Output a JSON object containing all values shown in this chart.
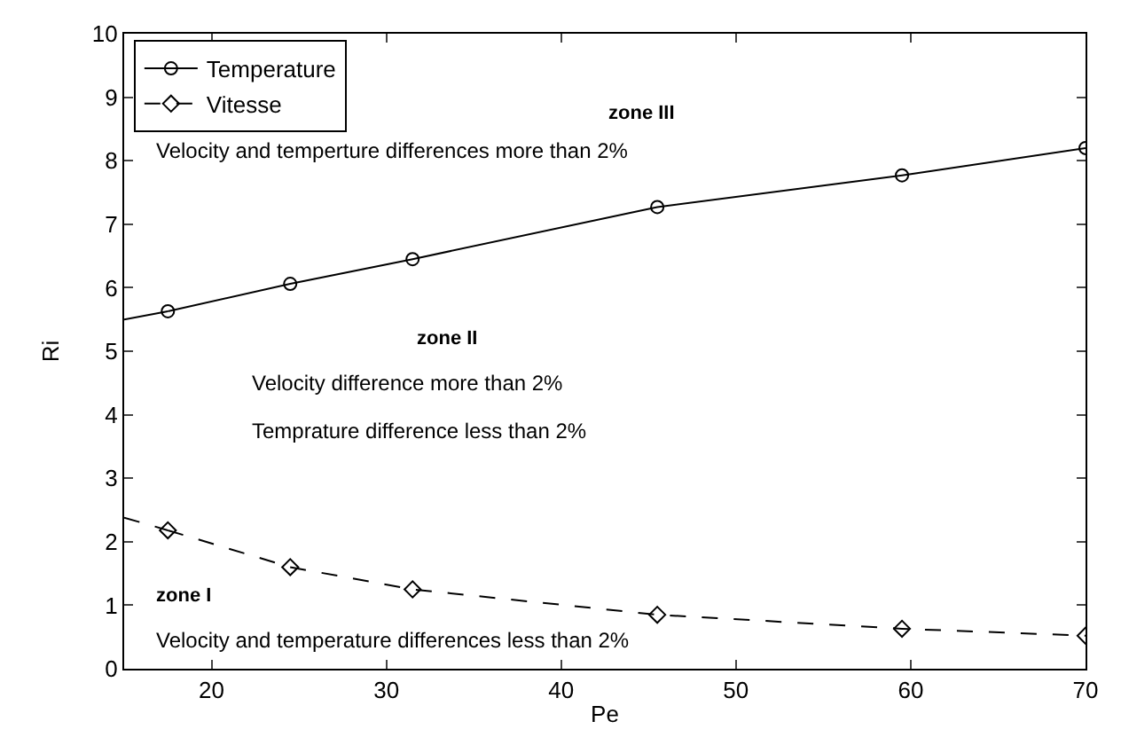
{
  "chart_data": {
    "type": "line",
    "xlabel": "Pe",
    "ylabel": "Ri",
    "xlim": [
      15,
      70
    ],
    "ylim": [
      0,
      10
    ],
    "xticks": [
      20,
      30,
      40,
      50,
      60,
      70
    ],
    "yticks": [
      0,
      1,
      2,
      3,
      4,
      5,
      6,
      7,
      8,
      9,
      10
    ],
    "legend": "top left",
    "series": [
      {
        "name": "Temperature",
        "color": "#000000",
        "marker": "circle",
        "line_style": "solid",
        "x": [
          17.5,
          24.5,
          31.5,
          45.5,
          59.5,
          70
        ],
        "values": [
          5.63,
          6.06,
          6.45,
          7.27,
          7.77,
          8.2
        ]
      },
      {
        "name": "Vitesse",
        "color": "#000000",
        "marker": "diamond",
        "line_style": "dashed",
        "x": [
          17.5,
          24.5,
          31.5,
          45.5,
          59.5,
          70
        ],
        "values": [
          2.18,
          1.6,
          1.25,
          0.85,
          0.63,
          0.52
        ]
      },
      {
        "color": "#000000",
        "marker": "none",
        "line_style": "solid",
        "x": [
          15,
          17.5
        ],
        "values": [
          5.5,
          5.63
        ]
      },
      {
        "color": "#000000",
        "marker": "none",
        "line_style": "dashed",
        "x": [
          15,
          17.5
        ],
        "values": [
          2.38,
          2.18
        ]
      }
    ],
    "annotations": [
      "zone III",
      "Velocity and temperture differences more than 2%",
      "zone II",
      "Velocity difference more than 2%",
      "Temprature difference less than 2%",
      "zone I",
      "Velocity and temperature differences less than 2%"
    ]
  }
}
